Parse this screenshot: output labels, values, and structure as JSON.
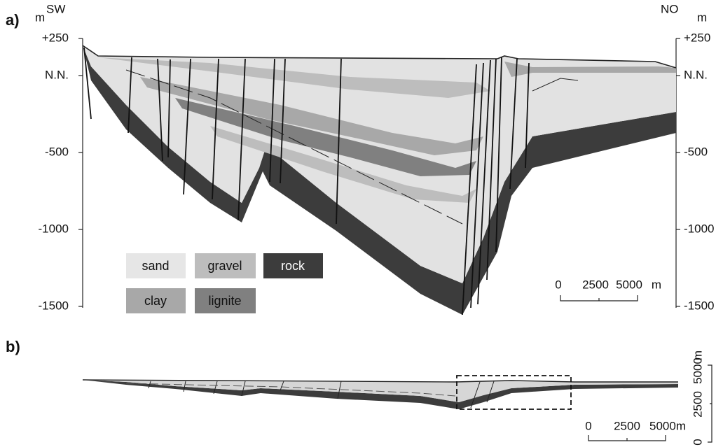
{
  "panel_a": {
    "label": "a)",
    "left_axis": {
      "unit": "m",
      "side": "SW",
      "ticks": [
        "+250",
        "N.N.",
        "-500",
        "-1000",
        "-1500"
      ]
    },
    "right_axis": {
      "unit": "m",
      "side": "NO",
      "ticks": [
        "+250",
        "N.N.",
        "-500",
        "-1000",
        "-1500"
      ]
    },
    "legend": [
      "sand",
      "gravel",
      "rock",
      "clay",
      "lignite"
    ],
    "scale": [
      "0",
      "2500",
      "5000",
      "m"
    ]
  },
  "panel_b": {
    "label": "b)",
    "scale": [
      "0",
      "2500",
      "5000m"
    ],
    "vertical_scale": [
      "0",
      "2500",
      "5000",
      "m"
    ]
  }
}
